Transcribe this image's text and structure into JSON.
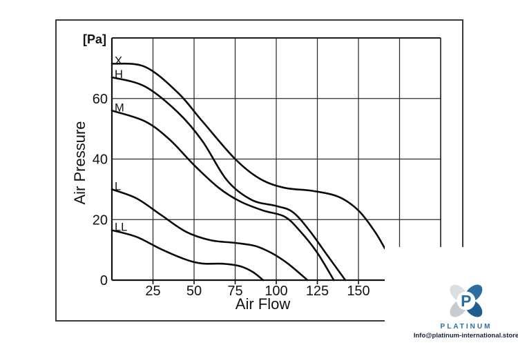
{
  "chart_data": {
    "type": "line",
    "title": "",
    "xlabel": "Air Flow",
    "ylabel": "Air Pressure",
    "y_unit": "[Pa]",
    "xlim": [
      0,
      200
    ],
    "ylim": [
      0,
      80
    ],
    "x_ticks": [
      25,
      50,
      75,
      100,
      125,
      150
    ],
    "y_ticks": [
      0,
      20,
      40,
      60
    ],
    "grid": true,
    "grid_x_step": 25,
    "grid_y_step": 20,
    "legend_position": "labels-at-curve-start",
    "series": [
      {
        "name": "X",
        "points": [
          [
            0,
            71.5
          ],
          [
            20,
            70.5
          ],
          [
            40,
            62
          ],
          [
            55,
            52.5
          ],
          [
            75,
            40
          ],
          [
            90,
            33.5
          ],
          [
            105,
            30.5
          ],
          [
            122,
            29.5
          ],
          [
            138,
            27.5
          ],
          [
            150,
            23
          ],
          [
            160,
            16
          ],
          [
            166,
            10.5
          ]
        ]
      },
      {
        "name": "H",
        "points": [
          [
            0,
            67
          ],
          [
            20,
            64
          ],
          [
            40,
            55.5
          ],
          [
            55,
            46
          ],
          [
            70,
            33
          ],
          [
            85,
            26.5
          ],
          [
            100,
            24.5
          ],
          [
            110,
            22.5
          ],
          [
            120,
            16.5
          ],
          [
            130,
            9
          ],
          [
            142,
            0
          ]
        ]
      },
      {
        "name": "M",
        "points": [
          [
            0,
            56
          ],
          [
            20,
            52.5
          ],
          [
            35,
            46.5
          ],
          [
            50,
            38
          ],
          [
            65,
            30.5
          ],
          [
            78,
            26
          ],
          [
            92,
            23
          ],
          [
            105,
            21
          ],
          [
            114,
            16.5
          ],
          [
            125,
            9
          ],
          [
            135,
            0
          ]
        ]
      },
      {
        "name": "L",
        "points": [
          [
            0,
            30
          ],
          [
            15,
            27
          ],
          [
            30,
            21.5
          ],
          [
            45,
            16
          ],
          [
            60,
            13.2
          ],
          [
            75,
            12.3
          ],
          [
            87,
            11.3
          ],
          [
            97,
            9
          ],
          [
            107,
            5.5
          ],
          [
            119,
            0
          ]
        ]
      },
      {
        "name": "LL",
        "points": [
          [
            0,
            16.5
          ],
          [
            15,
            14.3
          ],
          [
            30,
            10.2
          ],
          [
            45,
            6.8
          ],
          [
            55,
            5.5
          ],
          [
            68,
            5.4
          ],
          [
            78,
            4.6
          ],
          [
            86,
            2.6
          ],
          [
            92,
            0
          ]
        ]
      }
    ]
  },
  "branding": {
    "name": "PLATINUM",
    "monogram": "P",
    "email": "Info@platinum-international.store",
    "colors": {
      "blue": "#2d6ca2",
      "dark_blue": "#1f5c8f",
      "gray": "#c7ccd1",
      "light_gray": "#dcdfe2",
      "email_text": "#16233f"
    }
  }
}
